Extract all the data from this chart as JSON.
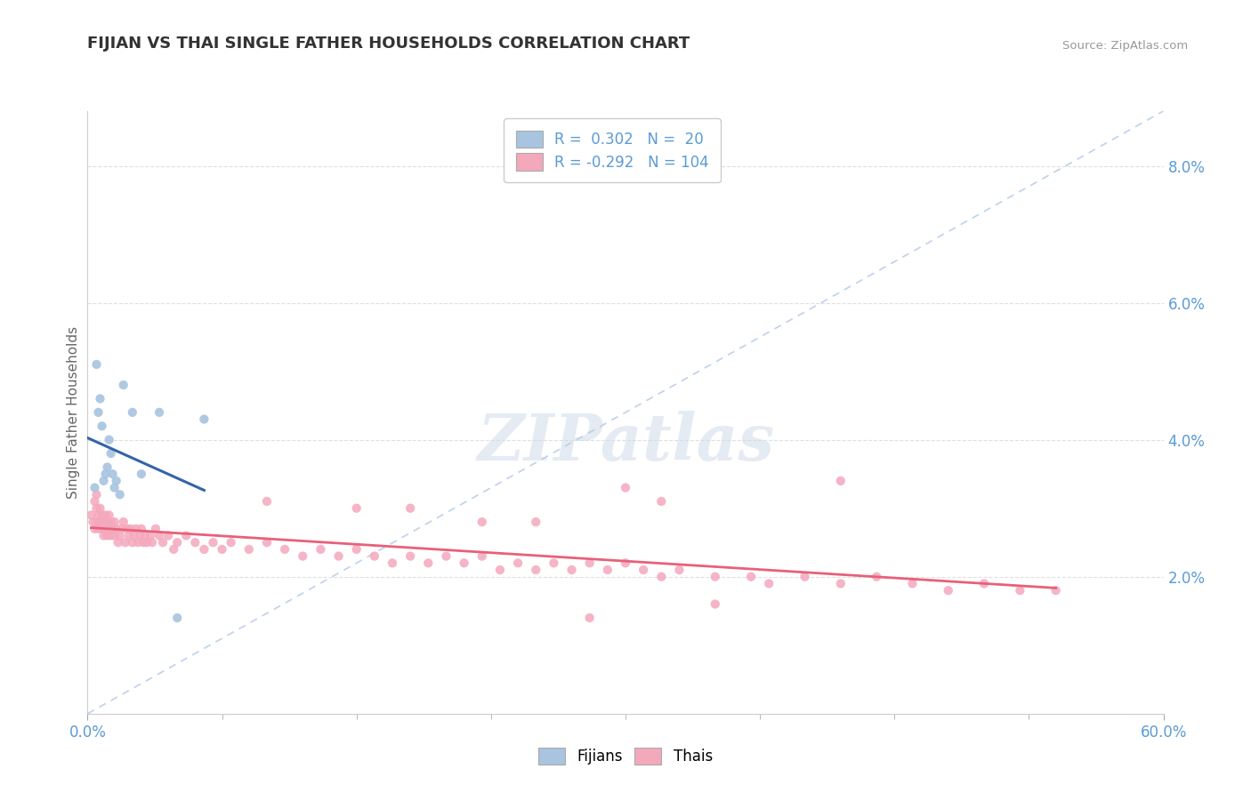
{
  "title": "FIJIAN VS THAI SINGLE FATHER HOUSEHOLDS CORRELATION CHART",
  "source": "Source: ZipAtlas.com",
  "ylabel": "Single Father Households",
  "fijian_R": "0.302",
  "fijian_N": "20",
  "thai_R": "-0.292",
  "thai_N": "104",
  "fijian_color": "#a8c4e0",
  "thai_color": "#f4a8bc",
  "fijian_line_color": "#3465a8",
  "thai_line_color": "#e8607a",
  "diagonal_line_color": "#b8cce8",
  "background_color": "#ffffff",
  "grid_color": "#d8d8d8",
  "title_color": "#333333",
  "tick_label_color": "#5b9bd5",
  "xlim": [
    0.0,
    0.6
  ],
  "ylim": [
    0.0,
    0.088
  ],
  "xticks": [
    0.0,
    0.6
  ],
  "xticklabels": [
    "0.0%",
    "60.0%"
  ],
  "yticks_right": [
    0.02,
    0.04,
    0.06,
    0.08
  ],
  "yticklabels_right": [
    "2.0%",
    "4.0%",
    "6.0%",
    "8.0%"
  ],
  "fijian_x": [
    0.004,
    0.005,
    0.006,
    0.007,
    0.008,
    0.009,
    0.01,
    0.011,
    0.012,
    0.013,
    0.014,
    0.015,
    0.016,
    0.018,
    0.02,
    0.025,
    0.03,
    0.04,
    0.05,
    0.065
  ],
  "fijian_y": [
    0.033,
    0.051,
    0.044,
    0.046,
    0.042,
    0.034,
    0.035,
    0.036,
    0.04,
    0.038,
    0.035,
    0.033,
    0.034,
    0.032,
    0.048,
    0.044,
    0.035,
    0.044,
    0.014,
    0.043
  ],
  "thai_x": [
    0.002,
    0.003,
    0.004,
    0.004,
    0.005,
    0.005,
    0.005,
    0.006,
    0.006,
    0.007,
    0.007,
    0.008,
    0.008,
    0.009,
    0.009,
    0.01,
    0.01,
    0.011,
    0.011,
    0.012,
    0.012,
    0.013,
    0.013,
    0.014,
    0.015,
    0.015,
    0.016,
    0.017,
    0.018,
    0.019,
    0.02,
    0.021,
    0.022,
    0.023,
    0.024,
    0.025,
    0.026,
    0.027,
    0.028,
    0.029,
    0.03,
    0.031,
    0.032,
    0.033,
    0.035,
    0.036,
    0.038,
    0.04,
    0.042,
    0.045,
    0.048,
    0.05,
    0.055,
    0.06,
    0.065,
    0.07,
    0.075,
    0.08,
    0.09,
    0.1,
    0.11,
    0.12,
    0.13,
    0.14,
    0.15,
    0.16,
    0.17,
    0.18,
    0.19,
    0.2,
    0.21,
    0.22,
    0.23,
    0.24,
    0.25,
    0.26,
    0.27,
    0.28,
    0.29,
    0.3,
    0.31,
    0.32,
    0.33,
    0.35,
    0.37,
    0.38,
    0.4,
    0.42,
    0.44,
    0.46,
    0.48,
    0.5,
    0.52,
    0.54,
    0.3,
    0.32,
    0.42,
    0.15,
    0.25,
    0.35,
    0.1,
    0.18,
    0.22,
    0.28
  ],
  "thai_y": [
    0.029,
    0.028,
    0.027,
    0.031,
    0.028,
    0.03,
    0.032,
    0.027,
    0.029,
    0.028,
    0.03,
    0.027,
    0.029,
    0.026,
    0.028,
    0.027,
    0.029,
    0.026,
    0.028,
    0.027,
    0.029,
    0.028,
    0.026,
    0.027,
    0.028,
    0.026,
    0.027,
    0.025,
    0.026,
    0.027,
    0.028,
    0.025,
    0.027,
    0.026,
    0.027,
    0.025,
    0.026,
    0.027,
    0.025,
    0.026,
    0.027,
    0.025,
    0.026,
    0.025,
    0.026,
    0.025,
    0.027,
    0.026,
    0.025,
    0.026,
    0.024,
    0.025,
    0.026,
    0.025,
    0.024,
    0.025,
    0.024,
    0.025,
    0.024,
    0.025,
    0.024,
    0.023,
    0.024,
    0.023,
    0.024,
    0.023,
    0.022,
    0.023,
    0.022,
    0.023,
    0.022,
    0.023,
    0.021,
    0.022,
    0.021,
    0.022,
    0.021,
    0.022,
    0.021,
    0.022,
    0.021,
    0.02,
    0.021,
    0.02,
    0.02,
    0.019,
    0.02,
    0.019,
    0.02,
    0.019,
    0.018,
    0.019,
    0.018,
    0.018,
    0.033,
    0.031,
    0.034,
    0.03,
    0.028,
    0.016,
    0.031,
    0.03,
    0.028,
    0.014
  ]
}
